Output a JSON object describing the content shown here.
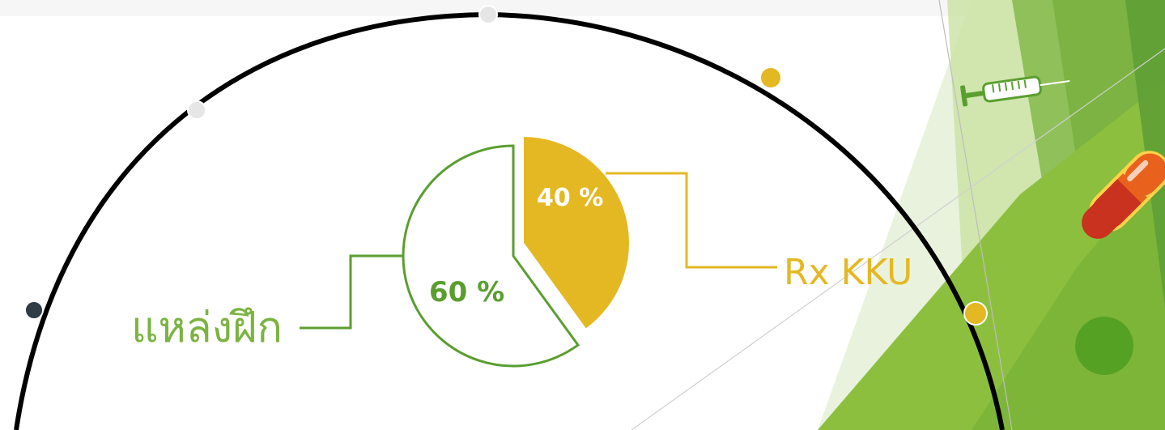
{
  "colors": {
    "green": "#5a9e2f",
    "gold": "#e4b822",
    "dark": "#2f3b45",
    "arc": "#000000",
    "dot_light": "#e6e6e6"
  },
  "icons": [
    "syringe-icon",
    "capsule-icon",
    "green-circle-icon"
  ],
  "chart_data": {
    "type": "pie",
    "categories": [
      "แหล่งฝึก",
      "Rx KKU"
    ],
    "values": [
      60,
      40
    ],
    "data_labels": [
      "60 %",
      "40 %"
    ],
    "colors": [
      "#5a9e2f",
      "#e4b822"
    ]
  }
}
